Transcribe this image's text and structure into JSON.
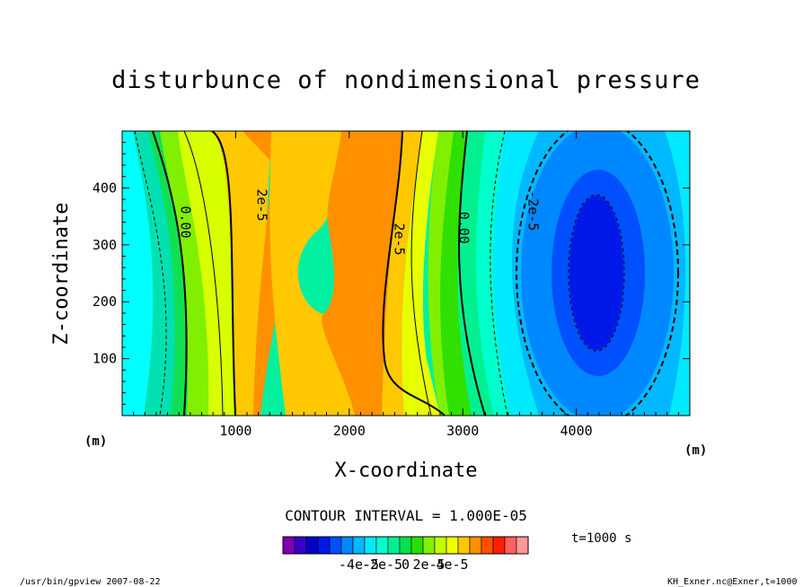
{
  "chart_data": {
    "type": "heatmap",
    "title": "disturbunce of nondimensional pressure",
    "xlabel": "X-coordinate",
    "ylabel": "Z-coordinate",
    "x_unit": "(m)",
    "y_unit": "(m)",
    "xlim": [
      0,
      5000
    ],
    "ylim": [
      0,
      500
    ],
    "x_ticks": [
      1000,
      2000,
      3000,
      4000
    ],
    "y_ticks": [
      100,
      200,
      300,
      400
    ],
    "contour_interval_label": "CONTOUR INTERVAL = 1.000E-05",
    "contour_labels": [
      {
        "text": "0.00",
        "x": 520,
        "z": 340
      },
      {
        "text": "2e-5",
        "x": 1190,
        "z": 370
      },
      {
        "text": "2e-5",
        "x": 2400,
        "z": 310
      },
      {
        "text": "0.00",
        "x": 2970,
        "z": 330
      },
      {
        "text": "-2e-5",
        "x": 3580,
        "z": 360
      }
    ],
    "colorbar": {
      "levels": [
        -6e-05,
        -5e-05,
        -4e-05,
        -3e-05,
        -2e-05,
        -1e-05,
        0,
        1e-05,
        2e-05,
        3e-05,
        4e-05,
        5e-05,
        6e-05
      ],
      "colors": [
        "#7f00b0",
        "#3800c8",
        "#0000c8",
        "#0018e8",
        "#0050ff",
        "#0088ff",
        "#00b8ff",
        "#00eaff",
        "#00ffcc",
        "#00f090",
        "#00e050",
        "#28e000",
        "#80f000",
        "#c8ff00",
        "#f0ff00",
        "#ffc800",
        "#ff9000",
        "#ff5000",
        "#ff2000",
        "#ff6060",
        "#ff9898"
      ],
      "tick_labels": [
        "-4e-5",
        "-2e-5",
        "0",
        "2e-5",
        "4e-5"
      ]
    },
    "time_label": "t=1000 s"
  },
  "footer": {
    "left": "/usr/bin/gpview   2007-08-22",
    "right": "KH_Exner.nc@Exner,t=1000"
  }
}
